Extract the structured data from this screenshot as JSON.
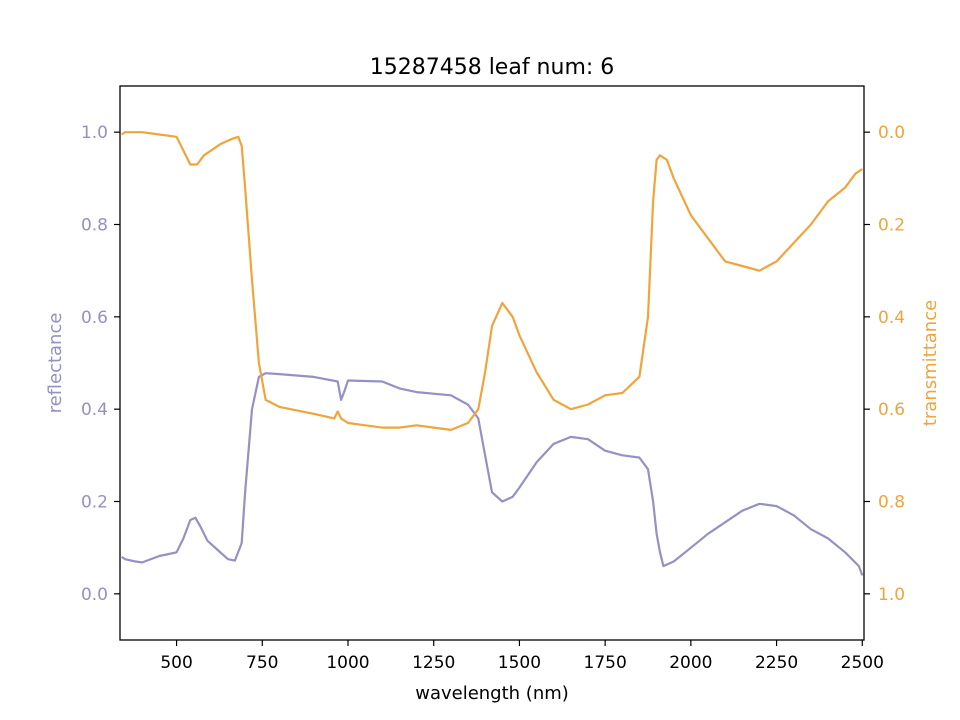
{
  "chart_data": {
    "type": "line",
    "title": "15287458 leaf num: 6",
    "xlabel": "wavelength (nm)",
    "ylabel_left": "reflectance",
    "ylabel_right": "transmittance",
    "xlim": [
      335,
      2505
    ],
    "ylim_left": [
      -0.1,
      1.1
    ],
    "ylim_right": [
      1.1,
      -0.1
    ],
    "x_ticks": [
      500,
      750,
      1000,
      1250,
      1500,
      1750,
      2000,
      2250,
      2500
    ],
    "y_ticks_left": [
      0.0,
      0.2,
      0.4,
      0.6,
      0.8,
      1.0
    ],
    "y_ticks_left_labels": [
      "0.0",
      "0.2",
      "0.4",
      "0.6",
      "0.8",
      "1.0"
    ],
    "y_ticks_right": [
      0.0,
      0.2,
      0.4,
      0.6,
      0.8,
      1.0
    ],
    "y_ticks_right_labels": [
      "0.0",
      "0.2",
      "0.4",
      "0.6",
      "0.8",
      "1.0"
    ],
    "grid": false,
    "colors": {
      "reflectance": "#9491c4",
      "transmittance": "#f0a43c"
    },
    "series": [
      {
        "axis": "left",
        "color": "#9491c4",
        "x": [
          340,
          350,
          380,
          400,
          450,
          500,
          520,
          540,
          555,
          570,
          590,
          620,
          650,
          670,
          690,
          700,
          720,
          740,
          760,
          800,
          900,
          970,
          980,
          990,
          1000,
          1100,
          1150,
          1200,
          1300,
          1350,
          1380,
          1400,
          1420,
          1450,
          1480,
          1500,
          1550,
          1600,
          1650,
          1700,
          1750,
          1800,
          1850,
          1875,
          1890,
          1900,
          1910,
          1920,
          1950,
          2000,
          2050,
          2100,
          2150,
          2200,
          2250,
          2300,
          2350,
          2400,
          2450,
          2490,
          2500
        ],
        "y": [
          0.08,
          0.075,
          0.07,
          0.068,
          0.082,
          0.09,
          0.12,
          0.16,
          0.165,
          0.145,
          0.115,
          0.095,
          0.075,
          0.072,
          0.11,
          0.22,
          0.4,
          0.47,
          0.478,
          0.476,
          0.47,
          0.46,
          0.42,
          0.44,
          0.462,
          0.46,
          0.445,
          0.437,
          0.43,
          0.41,
          0.38,
          0.3,
          0.22,
          0.2,
          0.21,
          0.23,
          0.285,
          0.325,
          0.34,
          0.335,
          0.31,
          0.3,
          0.295,
          0.27,
          0.2,
          0.13,
          0.09,
          0.06,
          0.07,
          0.1,
          0.13,
          0.155,
          0.18,
          0.195,
          0.19,
          0.17,
          0.14,
          0.12,
          0.09,
          0.06,
          0.04
        ]
      },
      {
        "axis": "right",
        "color": "#f0a43c",
        "x": [
          340,
          350,
          400,
          450,
          500,
          520,
          540,
          560,
          580,
          600,
          630,
          660,
          680,
          690,
          700,
          720,
          740,
          760,
          800,
          900,
          960,
          970,
          980,
          1000,
          1100,
          1150,
          1200,
          1250,
          1300,
          1350,
          1380,
          1400,
          1420,
          1450,
          1480,
          1500,
          1550,
          1600,
          1650,
          1700,
          1750,
          1800,
          1850,
          1875,
          1890,
          1900,
          1910,
          1930,
          1950,
          2000,
          2050,
          2100,
          2150,
          2200,
          2250,
          2300,
          2350,
          2400,
          2450,
          2480,
          2500
        ],
        "y": [
          0.005,
          0.0,
          0.0,
          0.005,
          0.01,
          0.04,
          0.07,
          0.07,
          0.05,
          0.04,
          0.025,
          0.015,
          0.01,
          0.03,
          0.12,
          0.32,
          0.5,
          0.58,
          0.595,
          0.61,
          0.62,
          0.605,
          0.62,
          0.63,
          0.64,
          0.64,
          0.635,
          0.64,
          0.645,
          0.63,
          0.6,
          0.52,
          0.42,
          0.37,
          0.4,
          0.44,
          0.52,
          0.58,
          0.6,
          0.59,
          0.57,
          0.565,
          0.53,
          0.4,
          0.15,
          0.06,
          0.05,
          0.06,
          0.1,
          0.18,
          0.23,
          0.28,
          0.29,
          0.3,
          0.28,
          0.24,
          0.2,
          0.15,
          0.12,
          0.09,
          0.08
        ]
      }
    ]
  }
}
